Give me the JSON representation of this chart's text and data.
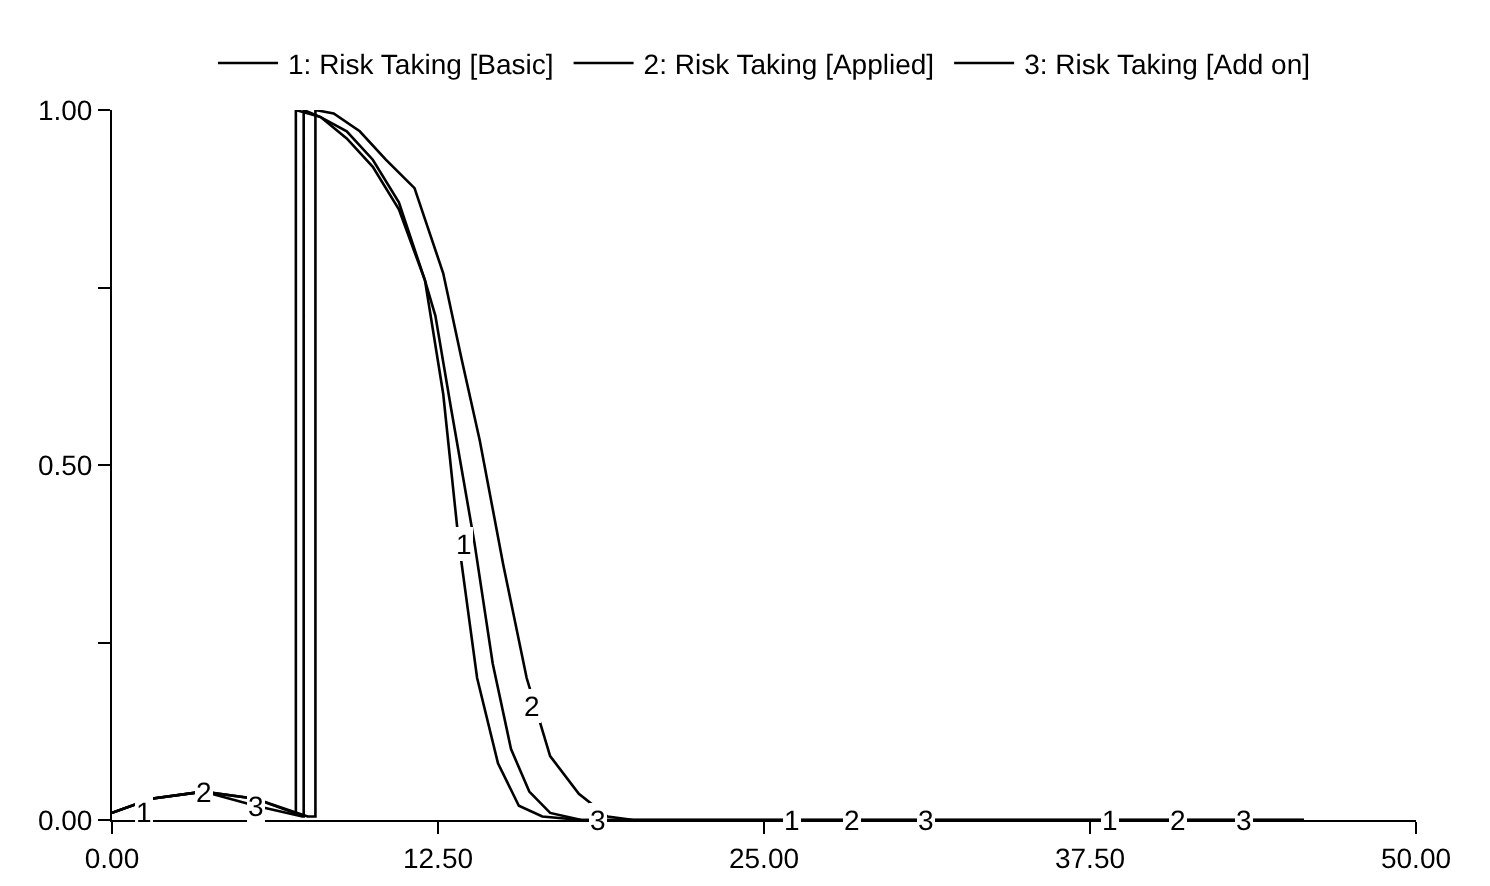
{
  "chart_data": {
    "type": "line",
    "series": [
      {
        "name": "1: Risk Taking [Basic]",
        "color": "#000000",
        "x": [
          0,
          1.5,
          3.5,
          5.5,
          7,
          7.05,
          7.05,
          8,
          9,
          10,
          11,
          12,
          12.7,
          13.3,
          14,
          14.8,
          15.6,
          16.5,
          18,
          25,
          45.7
        ],
        "values": [
          0.01,
          0.03,
          0.04,
          0.03,
          0.01,
          0.01,
          1.0,
          0.99,
          0.97,
          0.93,
          0.87,
          0.76,
          0.6,
          0.39,
          0.2,
          0.08,
          0.02,
          0.005,
          0,
          0,
          0
        ]
      },
      {
        "name": "2: Risk Taking [Applied]",
        "color": "#000000",
        "x": [
          0,
          1.5,
          3.5,
          5.5,
          7.5,
          7.8,
          7.8,
          8.5,
          9.5,
          10.5,
          11.6,
          12.7,
          13.4,
          14.1,
          15,
          15.9,
          16.8,
          17.9,
          19,
          20,
          45.7
        ],
        "values": [
          0.01,
          0.03,
          0.04,
          0.03,
          0.005,
          0.005,
          1.0,
          0.995,
          0.97,
          0.93,
          0.89,
          0.77,
          0.65,
          0.535,
          0.36,
          0.2,
          0.09,
          0.037,
          0.005,
          0,
          0
        ]
      },
      {
        "name": "3: Risk Taking [Add on]",
        "color": "#000000",
        "x": [
          0,
          1.5,
          3.5,
          5.5,
          7.3,
          7.35,
          7.35,
          8,
          9,
          10,
          11,
          12,
          12.4,
          13,
          13.9,
          14.6,
          15.3,
          16,
          16.8,
          18,
          45.7
        ],
        "values": [
          0.01,
          0.03,
          0.04,
          0.02,
          0.005,
          0.005,
          1.0,
          0.99,
          0.96,
          0.92,
          0.86,
          0.76,
          0.71,
          0.58,
          0.39,
          0.22,
          0.1,
          0.04,
          0.01,
          0,
          0
        ]
      }
    ],
    "xlim": [
      0,
      50
    ],
    "xticks": [
      {
        "value": 0,
        "label": "0.00"
      },
      {
        "value": 12.5,
        "label": "12.50"
      },
      {
        "value": 25,
        "label": "25.00"
      },
      {
        "value": 37.5,
        "label": "37.50"
      },
      {
        "value": 50,
        "label": "50.00"
      }
    ],
    "ylim": [
      0,
      1
    ],
    "yticks": [
      {
        "value": 0,
        "label": "0.00"
      },
      {
        "value": 0.25,
        "label": null
      },
      {
        "value": 0.5,
        "label": "0.50"
      },
      {
        "value": 0.75,
        "label": null
      },
      {
        "value": 1,
        "label": "1.00"
      }
    ],
    "grid": false,
    "legend": "top",
    "marker": "none",
    "line_style": "solid",
    "annotations": [
      {
        "text": "1",
        "x": 1.2,
        "y": 0.01
      },
      {
        "text": "2",
        "x": 3.5,
        "y": 0.04
      },
      {
        "text": "3",
        "x": 5.5,
        "y": 0.02
      },
      {
        "text": "1",
        "x": 13.5,
        "y": 0.39
      },
      {
        "text": "2",
        "x": 16.1,
        "y": 0.16
      },
      {
        "text": "3",
        "x": 18.6,
        "y": 0
      },
      {
        "text": "1",
        "x": 26.1,
        "y": 0
      },
      {
        "text": "2",
        "x": 28.4,
        "y": 0
      },
      {
        "text": "3",
        "x": 31.2,
        "y": 0
      },
      {
        "text": "1",
        "x": 38.3,
        "y": 0
      },
      {
        "text": "2",
        "x": 40.9,
        "y": 0
      },
      {
        "text": "3",
        "x": 43.4,
        "y": 0
      }
    ]
  }
}
